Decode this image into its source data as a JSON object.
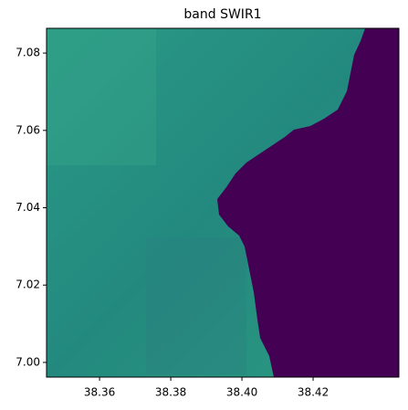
{
  "chart_data": {
    "type": "image",
    "title": "band SWIR1",
    "xlim": [
      38.3451,
      38.4441
    ],
    "ylim": [
      6.9962,
      7.0864
    ],
    "xticks": [
      {
        "value": 38.36,
        "label": "38.36"
      },
      {
        "value": 38.38,
        "label": "38.38"
      },
      {
        "value": 38.4,
        "label": "38.40"
      },
      {
        "value": 38.42,
        "label": "38.42"
      }
    ],
    "yticks": [
      {
        "value": 7.0,
        "label": "7.00"
      },
      {
        "value": 7.02,
        "label": "7.02"
      },
      {
        "value": 7.04,
        "label": "7.04"
      },
      {
        "value": 7.06,
        "label": "7.06"
      },
      {
        "value": 7.08,
        "label": "7.08"
      }
    ]
  }
}
